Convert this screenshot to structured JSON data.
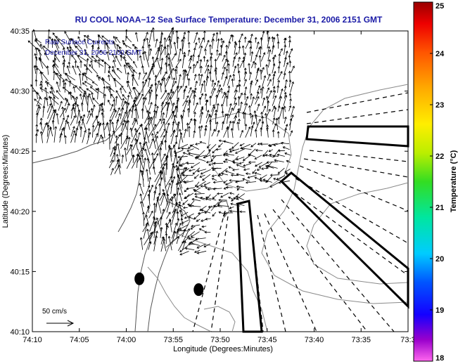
{
  "chart_data": {
    "type": "vector-field",
    "title": "RU COOL  NOAA−12  Sea Surface Temperature:  December 31, 2006 2151 GMT",
    "xlabel": "Longitude (Degrees:Minutes)",
    "ylabel": "Latitude (Degrees:Minutes)",
    "x_ticks": [
      "74:10",
      "74:05",
      "74:00",
      "73:55",
      "73:50",
      "73:45",
      "73:40",
      "73:35",
      "73:3"
    ],
    "y_ticks": [
      "40:10",
      "40:15",
      "40:20",
      "40:25",
      "40:30",
      "40:35"
    ],
    "xlim_min": [
      10,
      30
    ],
    "ylim_min": [
      10,
      35
    ],
    "legend_lines": [
      "Raw Surface Currents",
      "December 31, 2006 2100 GMT"
    ],
    "scale_label": "50 cm/s",
    "colorbar": {
      "label": "Temperature (°C)",
      "range": [
        18,
        25
      ],
      "ticks": [
        "18",
        "19",
        "20",
        "21",
        "22",
        "23",
        "24",
        "25"
      ]
    },
    "markers": [
      {
        "lon": "73:58.6",
        "lat": "40:14.4"
      },
      {
        "lon": "73:52.3",
        "lat": "40:13.5"
      }
    ],
    "colors": {
      "title": "#1a1aa6",
      "legend": "#1a1aa6",
      "land_outline": "#555555",
      "vectors": "#000000"
    }
  }
}
